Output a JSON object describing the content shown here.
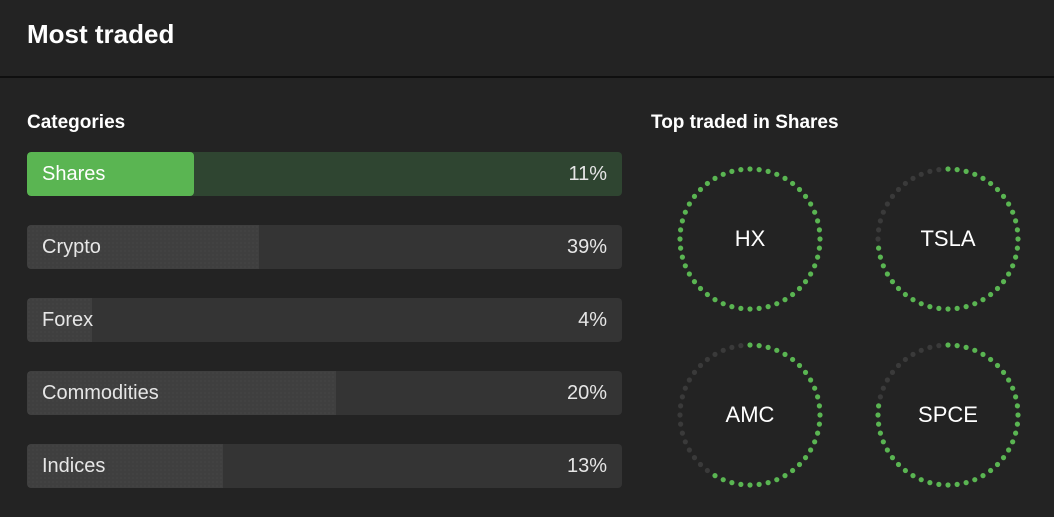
{
  "header": {
    "title": "Most traded"
  },
  "categories": {
    "label": "Categories",
    "items": [
      {
        "name": "Shares",
        "percent": "11%",
        "fill": 0.28,
        "active": true
      },
      {
        "name": "Crypto",
        "percent": "39%",
        "fill": 0.39,
        "active": false
      },
      {
        "name": "Forex",
        "percent": "4%",
        "fill": 0.11,
        "active": false
      },
      {
        "name": "Commodities",
        "percent": "20%",
        "fill": 0.52,
        "active": false
      },
      {
        "name": "Indices",
        "percent": "13%",
        "fill": 0.33,
        "active": false
      }
    ]
  },
  "top_traded": {
    "label": "Top traded in Shares",
    "items": [
      {
        "symbol": "HX",
        "fill": 1.0
      },
      {
        "symbol": "TSLA",
        "fill": 0.75
      },
      {
        "symbol": "AMC",
        "fill": 0.6
      },
      {
        "symbol": "SPCE",
        "fill": 0.8
      }
    ]
  },
  "colors": {
    "accent": "#5ab552",
    "accent_dim": "#2f4531",
    "ring_empty": "#3a3a3a",
    "bar_track": "#343434",
    "background": "#232323"
  }
}
